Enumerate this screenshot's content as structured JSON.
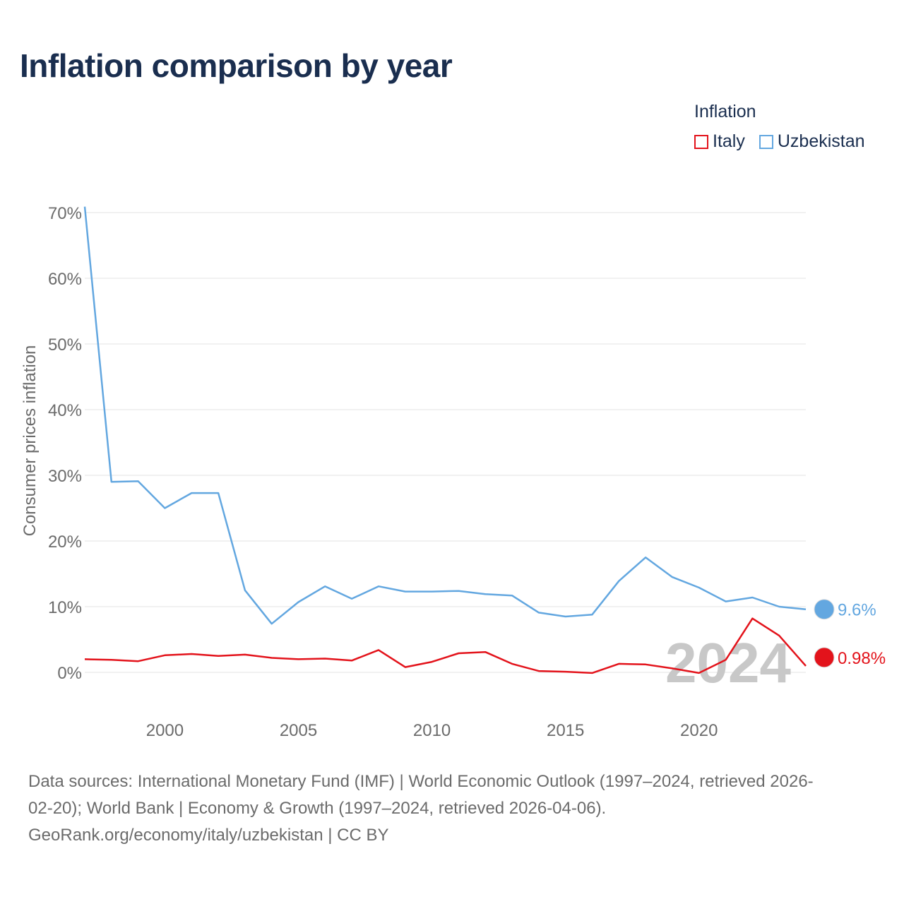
{
  "title": "Inflation comparison by year",
  "legend": {
    "title": "Inflation",
    "items": [
      {
        "label": "Italy",
        "color": "#e3131b"
      },
      {
        "label": "Uzbekistan",
        "color": "#63a7e0"
      }
    ]
  },
  "chart_data": {
    "type": "line",
    "title": "Inflation comparison by year",
    "xlabel": "",
    "ylabel": "Consumer prices inflation",
    "xlim": [
      1997,
      2024
    ],
    "ylim": [
      0,
      70
    ],
    "xticks": [
      2000,
      2005,
      2010,
      2015,
      2020
    ],
    "yticks": [
      0,
      10,
      20,
      30,
      40,
      50,
      60,
      70
    ],
    "ytick_labels": [
      "0%",
      "10%",
      "20%",
      "30%",
      "40%",
      "50%",
      "60%",
      "70%"
    ],
    "grid": true,
    "x": [
      1997,
      1998,
      1999,
      2000,
      2001,
      2002,
      2003,
      2004,
      2005,
      2006,
      2007,
      2008,
      2009,
      2010,
      2011,
      2012,
      2013,
      2014,
      2015,
      2016,
      2017,
      2018,
      2019,
      2020,
      2021,
      2022,
      2023,
      2024
    ],
    "series": [
      {
        "name": "Uzbekistan",
        "color": "#63a7e0",
        "values": [
          70.9,
          29.0,
          29.1,
          25.0,
          27.3,
          27.3,
          12.5,
          7.4,
          10.7,
          13.1,
          11.2,
          13.1,
          12.3,
          12.3,
          12.4,
          11.9,
          11.7,
          9.1,
          8.5,
          8.8,
          13.9,
          17.5,
          14.5,
          12.9,
          10.8,
          11.4,
          10.0,
          9.6
        ],
        "end_label": "9.6%"
      },
      {
        "name": "Italy",
        "color": "#e3131b",
        "values": [
          2.0,
          1.9,
          1.7,
          2.6,
          2.8,
          2.5,
          2.7,
          2.2,
          2.0,
          2.1,
          1.8,
          3.4,
          0.8,
          1.6,
          2.9,
          3.1,
          1.3,
          0.2,
          0.1,
          -0.1,
          1.3,
          1.2,
          0.6,
          -0.1,
          1.9,
          8.2,
          5.6,
          0.98
        ],
        "end_label": "0.98%"
      }
    ],
    "annotation": "2024"
  },
  "sources": {
    "line1": "Data sources: International Monetary Fund (IMF) | World Economic Outlook (1997–2024, retrieved 2026-",
    "line2": "02-20); World Bank | Economy & Growth (1997–2024, retrieved 2026-04-06).",
    "line3": "GeoRank.org/economy/italy/uzbekistan | CC BY"
  }
}
